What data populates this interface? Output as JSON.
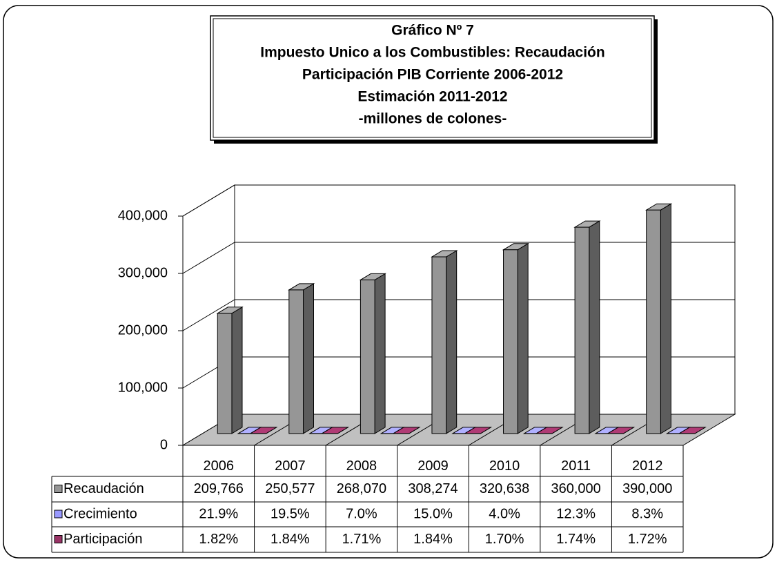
{
  "chart_data": {
    "type": "bar3d",
    "title": [
      "Gráfico Nº 7",
      "Impuesto Unico a los Combustibles: Recaudación",
      "Participación PIB Corriente 2006-2012",
      "Estimación 2011-2012",
      "-millones de colones-"
    ],
    "categories": [
      "2006",
      "2007",
      "2008",
      "2009",
      "2010",
      "2011",
      "2012"
    ],
    "series": [
      {
        "name": "Recaudación",
        "color": "#969696",
        "values": [
          209766,
          250577,
          268070,
          308274,
          320638,
          360000,
          390000
        ],
        "value_labels": [
          "209,766",
          "250,577",
          "268,070",
          "308,274",
          "320,638",
          "360,000",
          "390,000"
        ]
      },
      {
        "name": "Crecimiento",
        "color": "#9999ff",
        "values": [
          21.9,
          19.5,
          7.0,
          15.0,
          4.0,
          12.3,
          8.3
        ],
        "value_labels": [
          "21.9%",
          "19.5%",
          "7.0%",
          "15.0%",
          "4.0%",
          "12.3%",
          "8.3%"
        ]
      },
      {
        "name": "Participación",
        "color": "#993366",
        "values": [
          1.82,
          1.84,
          1.71,
          1.84,
          1.7,
          1.74,
          1.72
        ],
        "value_labels": [
          "1.82%",
          "1.84%",
          "1.71%",
          "1.84%",
          "1.70%",
          "1.74%",
          "1.72%"
        ]
      }
    ],
    "ylim": [
      0,
      400000
    ],
    "yticks": [
      0,
      {
        "value": 100000,
        "label": "100,000"
      },
      {
        "value": 200000,
        "label": "200,000"
      },
      {
        "value": 300000,
        "label": "300,000"
      },
      {
        "value": 400000,
        "label": "400,000"
      }
    ],
    "grid": true,
    "data_table": true
  }
}
